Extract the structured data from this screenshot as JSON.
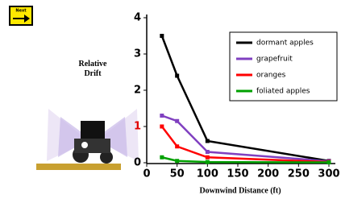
{
  "nav": {
    "label": "Next"
  },
  "chart_data": {
    "type": "line",
    "y_label": "Relative Drift",
    "x_label": "Downwind Distance (ft)",
    "x": [
      25,
      50,
      100,
      300
    ],
    "series": [
      {
        "name": "dormant apples",
        "color": "#000000",
        "values": [
          3.5,
          2.4,
          0.6,
          0.05
        ]
      },
      {
        "name": "grapefruit",
        "color": "#8040c0",
        "values": [
          1.3,
          1.15,
          0.3,
          0.04
        ]
      },
      {
        "name": "oranges",
        "color": "#ff0000",
        "values": [
          1.0,
          0.45,
          0.15,
          0.02
        ]
      },
      {
        "name": "foliated apples",
        "color": "#00a000",
        "values": [
          0.15,
          0.05,
          0.02,
          0.01
        ]
      }
    ],
    "xlim": [
      0,
      300
    ],
    "xticks": [
      0,
      50,
      100,
      150,
      200,
      250,
      300
    ],
    "ylim": [
      0,
      4
    ],
    "yticks": [
      0,
      1,
      2,
      3,
      4
    ],
    "legend": "upper right"
  }
}
